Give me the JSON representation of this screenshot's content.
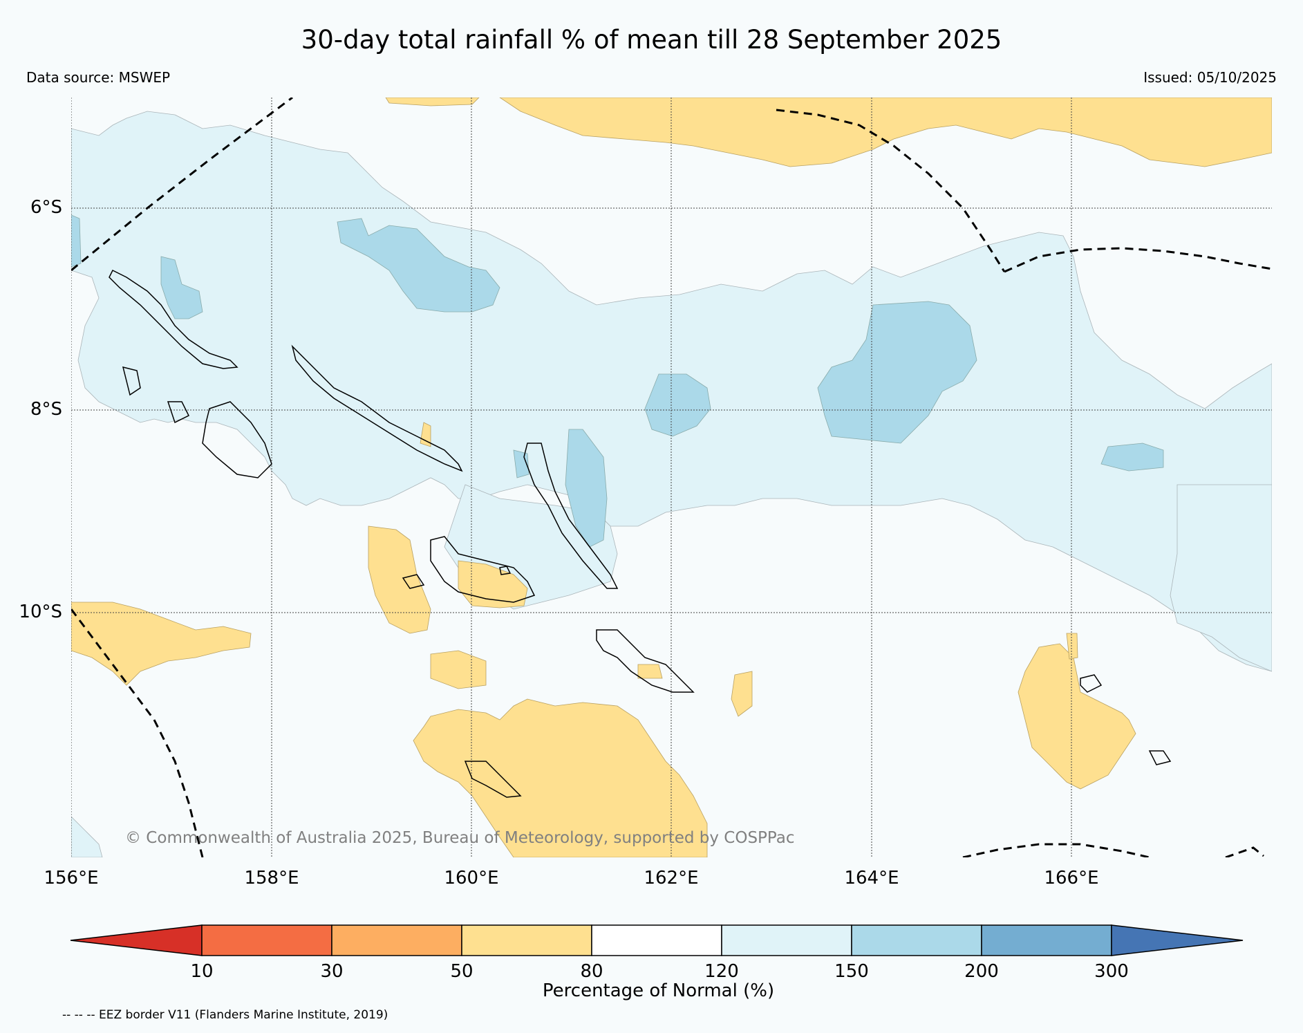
{
  "title": "30-day total rainfall % of mean till 28 September 2025",
  "data_source": "Data source: MSWEP",
  "issued": "Issued: 05/10/2025",
  "copyright": "© Commonwealth of Australia 2025, Bureau of Meteorology, supported by COSPPac",
  "lat_labels": [
    "6°S",
    "8°S",
    "10°S"
  ],
  "lon_labels": [
    "156°E",
    "158°E",
    "160°E",
    "162°E",
    "164°E",
    "166°E"
  ],
  "colorbar": {
    "label": "Percentage of Normal (%)",
    "ticks": [
      "10",
      "30",
      "50",
      "80",
      "120",
      "150",
      "200",
      "300"
    ],
    "colors": [
      "#d73027",
      "#f46d43",
      "#fdae61",
      "#fee090",
      "#ffffff",
      "#e0f3f8",
      "#abd9e9",
      "#74add1",
      "#4575b4"
    ]
  },
  "legend_note": "-- -- -- EEZ border V11 (Flanders Marine Institute, 2019)",
  "colors": {
    "dry": "#fee090",
    "wet_light": "#e0f3f8",
    "wet_medium": "#abd9e9",
    "background": "#f7fbfc"
  }
}
